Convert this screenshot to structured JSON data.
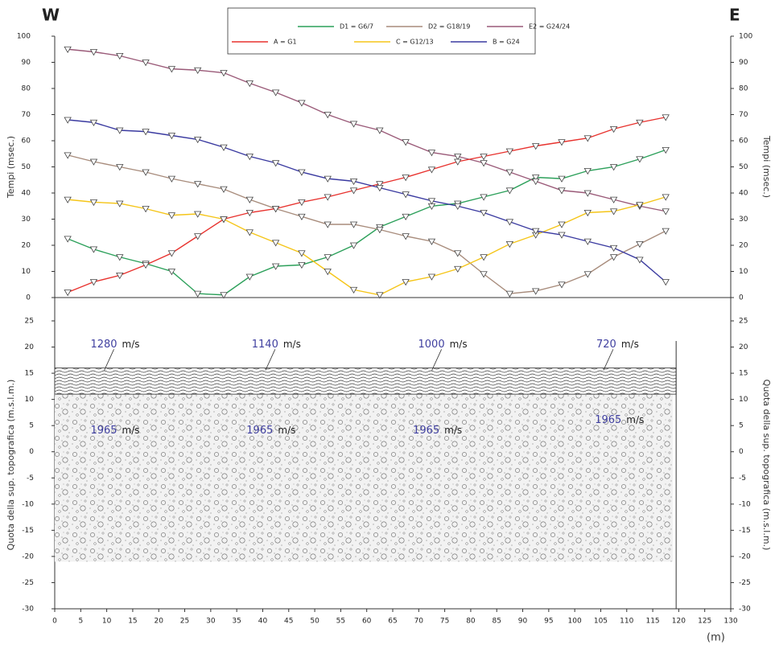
{
  "header": {
    "west": "W",
    "east": "E",
    "x_unit": "(m)"
  },
  "chart_data": [
    {
      "type": "line",
      "y_label": "Tempi (msec.)",
      "xlim": [
        0,
        130
      ],
      "ylim": [
        0,
        100
      ],
      "yticks": [
        0,
        10,
        20,
        30,
        40,
        50,
        60,
        70,
        80,
        90,
        100
      ],
      "x": [
        2.5,
        7.5,
        12.5,
        17.5,
        22.5,
        27.5,
        32.5,
        37.5,
        42.5,
        47.5,
        52.5,
        57.5,
        62.5,
        67.5,
        72.5,
        77.5,
        82.5,
        87.5,
        92.5,
        97.5,
        102.5,
        107.5,
        112.5,
        117.5
      ],
      "series": [
        {
          "name": "D1 = G6/7",
          "color": "#2ca05a",
          "values": [
            22.5,
            18.5,
            15.5,
            13,
            10,
            1.5,
            1,
            8,
            12,
            12.5,
            15.5,
            20,
            27,
            31,
            35,
            36,
            38.5,
            41,
            46,
            45.5,
            48.5,
            50,
            53,
            56.5
          ]
        },
        {
          "name": "D2 = G18/19",
          "color": "#a88c7c",
          "values": [
            54.5,
            52,
            50,
            48,
            45.5,
            43.5,
            41.5,
            37.5,
            34,
            31,
            28,
            28,
            26,
            23.5,
            21.5,
            17,
            9,
            1.5,
            2.5,
            5,
            9,
            15.5,
            20.5,
            25.5
          ]
        },
        {
          "name": "E2 = G24/24",
          "color": "#9a5a78",
          "values": [
            95,
            94,
            92.5,
            90,
            87.5,
            87,
            86,
            82,
            78.5,
            74.5,
            70,
            66.5,
            64,
            59.5,
            55.5,
            54,
            51.5,
            48,
            44.5,
            41,
            40,
            37.5,
            35,
            33
          ]
        },
        {
          "name": "A = G1",
          "color": "#e8322e",
          "values": [
            2,
            6,
            8.5,
            12.5,
            17,
            23.5,
            30,
            32.5,
            34,
            36.5,
            38.5,
            41,
            43.5,
            46,
            49,
            52,
            54,
            56,
            58,
            59.5,
            61,
            64.5,
            67,
            69
          ]
        },
        {
          "name": "C = G12/13",
          "color": "#f5c518",
          "values": [
            37.5,
            36.5,
            36,
            34,
            31.5,
            32,
            30,
            25,
            21,
            17,
            10,
            3,
            1,
            6,
            8,
            11,
            15.5,
            20.5,
            24,
            28,
            32.5,
            33,
            35.5,
            38.5
          ]
        },
        {
          "name": "B = G24",
          "color": "#3a3aa0",
          "values": [
            68,
            67,
            64,
            63.5,
            62,
            60.5,
            57.5,
            54,
            51.5,
            48,
            45.5,
            44.5,
            42,
            39.5,
            37,
            35,
            32.5,
            29,
            25.5,
            24,
            21.5,
            19,
            14.5,
            6
          ]
        }
      ]
    },
    {
      "type": "section",
      "y_label": "Quota della sup. topografica (m.s.l.m.)",
      "xlim": [
        0,
        130
      ],
      "ylim": [
        -30,
        25
      ],
      "xticks": [
        0,
        5,
        10,
        15,
        20,
        25,
        30,
        35,
        40,
        45,
        50,
        55,
        60,
        65,
        70,
        75,
        80,
        85,
        90,
        95,
        100,
        105,
        110,
        115,
        120,
        125,
        130
      ],
      "yticks": [
        -30,
        -25,
        -20,
        -15,
        -10,
        -5,
        0,
        5,
        10,
        15,
        20,
        25
      ],
      "surface": 16,
      "interface": 11,
      "base": -21,
      "x_end": 119.5,
      "velocity_unit": "m/s",
      "upper_velocities": [
        1280,
        1140,
        1000,
        720
      ],
      "lower_velocities": [
        1965,
        1965,
        1965,
        1965
      ]
    }
  ]
}
